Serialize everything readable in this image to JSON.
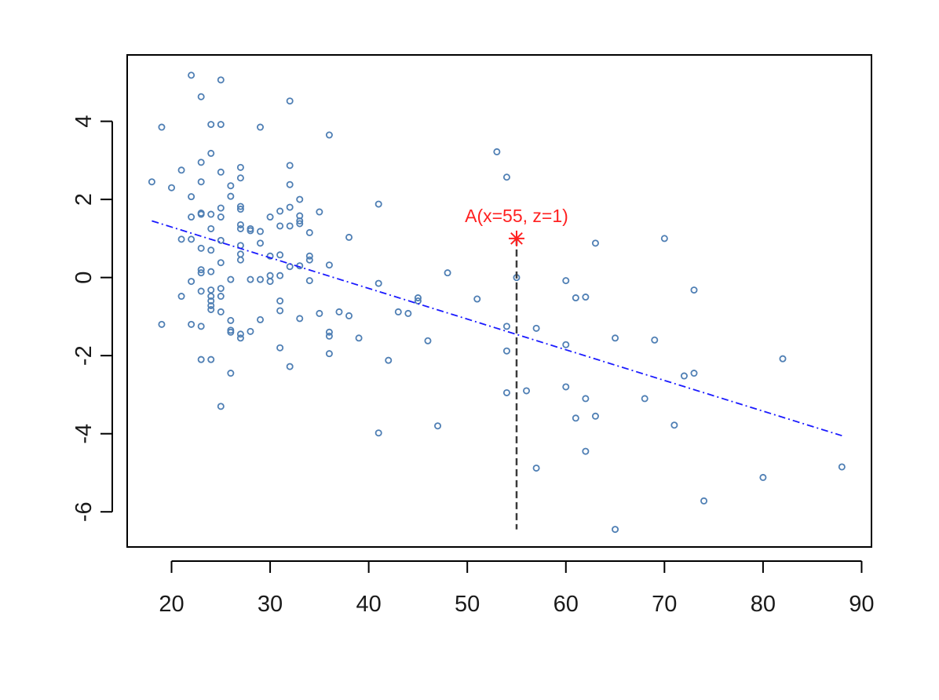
{
  "chart_data": {
    "type": "scatter",
    "title": "",
    "xlabel": "",
    "ylabel": "",
    "xlim": [
      15.5,
      91
    ],
    "ylim": [
      -6.9,
      5.7
    ],
    "x_ticks": [
      20,
      30,
      40,
      50,
      60,
      70,
      80,
      90
    ],
    "y_ticks": [
      -6,
      -4,
      -2,
      0,
      2,
      4
    ],
    "grid": false,
    "legend": "none",
    "point_color": "#4f7fb4",
    "trend_color": "#1a1aff",
    "annotation_color": "#ff2020",
    "guide_color": "#3a3a3a",
    "series": [
      {
        "points": [
          [
            18,
            2.45
          ],
          [
            19,
            3.85
          ],
          [
            19,
            -1.2
          ],
          [
            20,
            2.3
          ],
          [
            21,
            2.75
          ],
          [
            21,
            0.98
          ],
          [
            21,
            -0.48
          ],
          [
            22,
            5.18
          ],
          [
            22,
            2.07
          ],
          [
            22,
            1.55
          ],
          [
            22,
            0.98
          ],
          [
            22,
            -0.1
          ],
          [
            22,
            -1.2
          ],
          [
            23,
            4.63
          ],
          [
            23,
            2.95
          ],
          [
            23,
            2.45
          ],
          [
            23,
            1.65
          ],
          [
            23,
            1.62
          ],
          [
            23,
            0.75
          ],
          [
            23,
            0.2
          ],
          [
            23,
            0.12
          ],
          [
            23,
            -0.35
          ],
          [
            23,
            -1.25
          ],
          [
            23,
            -2.1
          ],
          [
            24,
            3.92
          ],
          [
            24,
            3.18
          ],
          [
            24,
            1.62
          ],
          [
            24,
            1.25
          ],
          [
            24,
            0.7
          ],
          [
            24,
            0.15
          ],
          [
            24,
            -0.32
          ],
          [
            24,
            -0.48
          ],
          [
            24,
            -0.6
          ],
          [
            24,
            -0.72
          ],
          [
            24,
            -0.82
          ],
          [
            24,
            -2.1
          ],
          [
            25,
            5.06
          ],
          [
            25,
            3.92
          ],
          [
            25,
            2.7
          ],
          [
            25,
            1.78
          ],
          [
            25,
            1.55
          ],
          [
            25,
            0.95
          ],
          [
            25,
            0.38
          ],
          [
            25,
            -0.28
          ],
          [
            25,
            -0.48
          ],
          [
            25,
            -0.88
          ],
          [
            25,
            -3.3
          ],
          [
            26,
            2.35
          ],
          [
            26,
            2.08
          ],
          [
            26,
            -0.05
          ],
          [
            26,
            -1.1
          ],
          [
            26,
            -1.35
          ],
          [
            26,
            -1.4
          ],
          [
            26,
            -2.45
          ],
          [
            27,
            2.82
          ],
          [
            27,
            2.55
          ],
          [
            27,
            1.82
          ],
          [
            27,
            1.75
          ],
          [
            27,
            1.35
          ],
          [
            27,
            1.25
          ],
          [
            27,
            0.82
          ],
          [
            27,
            0.6
          ],
          [
            27,
            0.45
          ],
          [
            27,
            -1.45
          ],
          [
            27,
            -1.55
          ],
          [
            28,
            1.25
          ],
          [
            28,
            1.2
          ],
          [
            28,
            -0.05
          ],
          [
            28,
            -1.38
          ],
          [
            29,
            3.85
          ],
          [
            29,
            1.18
          ],
          [
            29,
            0.88
          ],
          [
            29,
            -0.05
          ],
          [
            29,
            -1.08
          ],
          [
            30,
            1.55
          ],
          [
            30,
            0.55
          ],
          [
            30,
            0.05
          ],
          [
            30,
            -0.1
          ],
          [
            31,
            1.7
          ],
          [
            31,
            1.32
          ],
          [
            31,
            0.58
          ],
          [
            31,
            0.05
          ],
          [
            31,
            -0.6
          ],
          [
            31,
            -0.85
          ],
          [
            31,
            -1.8
          ],
          [
            32,
            4.52
          ],
          [
            32,
            2.87
          ],
          [
            32,
            2.38
          ],
          [
            32,
            1.8
          ],
          [
            32,
            1.32
          ],
          [
            32,
            0.28
          ],
          [
            32,
            -2.28
          ],
          [
            33,
            2.0
          ],
          [
            33,
            1.58
          ],
          [
            33,
            1.45
          ],
          [
            33,
            1.38
          ],
          [
            33,
            0.3
          ],
          [
            33,
            -1.05
          ],
          [
            34,
            1.15
          ],
          [
            34,
            0.55
          ],
          [
            34,
            0.45
          ],
          [
            34,
            -0.08
          ],
          [
            35,
            1.68
          ],
          [
            35,
            -0.92
          ],
          [
            36,
            3.65
          ],
          [
            36,
            0.32
          ],
          [
            36,
            -1.4
          ],
          [
            36,
            -1.5
          ],
          [
            36,
            -1.95
          ],
          [
            37,
            -0.88
          ],
          [
            38,
            1.03
          ],
          [
            38,
            -0.98
          ],
          [
            39,
            -1.55
          ],
          [
            41,
            1.88
          ],
          [
            41,
            -0.15
          ],
          [
            41,
            -3.98
          ],
          [
            42,
            -2.12
          ],
          [
            43,
            -0.88
          ],
          [
            44,
            -0.92
          ],
          [
            45,
            -0.52
          ],
          [
            45,
            -0.6
          ],
          [
            46,
            -1.62
          ],
          [
            47,
            -3.8
          ],
          [
            48,
            0.12
          ],
          [
            51,
            -0.55
          ],
          [
            53,
            3.22
          ],
          [
            54,
            2.57
          ],
          [
            54,
            -1.25
          ],
          [
            54,
            -1.88
          ],
          [
            54,
            -2.95
          ],
          [
            55,
            0.0
          ],
          [
            56,
            -2.9
          ],
          [
            57,
            -1.3
          ],
          [
            57,
            -4.88
          ],
          [
            60,
            -0.08
          ],
          [
            60,
            -1.72
          ],
          [
            60,
            -2.8
          ],
          [
            61,
            -0.52
          ],
          [
            61,
            -3.6
          ],
          [
            62,
            -0.5
          ],
          [
            62,
            -3.1
          ],
          [
            62,
            -4.45
          ],
          [
            63,
            0.88
          ],
          [
            63,
            -3.55
          ],
          [
            65,
            -1.55
          ],
          [
            65,
            -6.45
          ],
          [
            68,
            -3.1
          ],
          [
            69,
            -1.6
          ],
          [
            70,
            1.0
          ],
          [
            71,
            -3.78
          ],
          [
            72,
            -2.52
          ],
          [
            73,
            -0.32
          ],
          [
            73,
            -2.45
          ],
          [
            74,
            -5.72
          ],
          [
            80,
            -5.12
          ],
          [
            82,
            -2.08
          ],
          [
            88,
            -4.85
          ]
        ]
      }
    ],
    "trend_line": {
      "x1": 18,
      "y1": 1.45,
      "x2": 88,
      "y2": -4.05
    },
    "annotation": {
      "label": "A(x=55, z=1)",
      "x": 55,
      "y": 1,
      "guide_to_y": -6.45
    }
  }
}
